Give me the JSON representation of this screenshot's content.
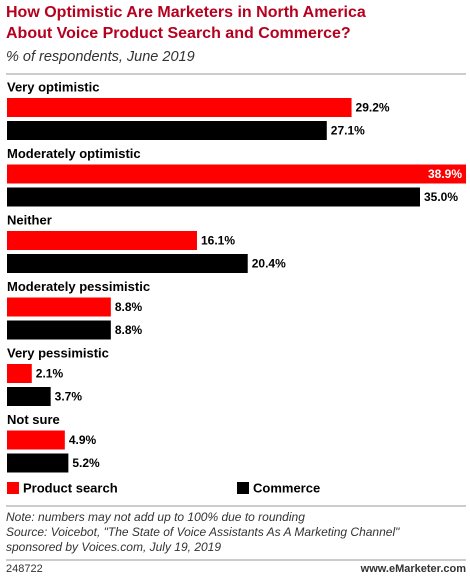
{
  "chart_data": {
    "type": "hbar",
    "title": [
      "How Optimistic Are Marketers in North America",
      "About Voice Product Search and Commerce?"
    ],
    "subtitle": "% of respondents, June 2019",
    "categories": [
      "Very optimistic",
      "Moderately optimistic",
      "Neither",
      "Moderately pessimistic",
      "Very pessimistic",
      "Not sure"
    ],
    "series": [
      {
        "name": "Product search",
        "color": "#ff0000",
        "values": [
          29.2,
          38.9,
          16.1,
          8.8,
          2.1,
          4.9
        ],
        "value_labels": [
          "29.2%",
          "38.9%",
          "16.1%",
          "8.8%",
          "2.1%",
          "4.9%"
        ]
      },
      {
        "name": "Commerce",
        "color": "#000000",
        "values": [
          27.1,
          35.0,
          20.4,
          8.8,
          3.7,
          5.2
        ],
        "value_labels": [
          "27.1%",
          "35.0%",
          "20.4%",
          "8.8%",
          "3.7%",
          "5.2%"
        ]
      }
    ],
    "note": "Note: numbers may not add up to 100% due to rounding",
    "source": [
      "Source: Voicebot, \"The State of Voice Assistants As A Marketing Channel\"",
      "sponsored by Voices.com, July 19, 2019"
    ],
    "chart_id": "248722",
    "site": "www.eMarketer.com"
  }
}
